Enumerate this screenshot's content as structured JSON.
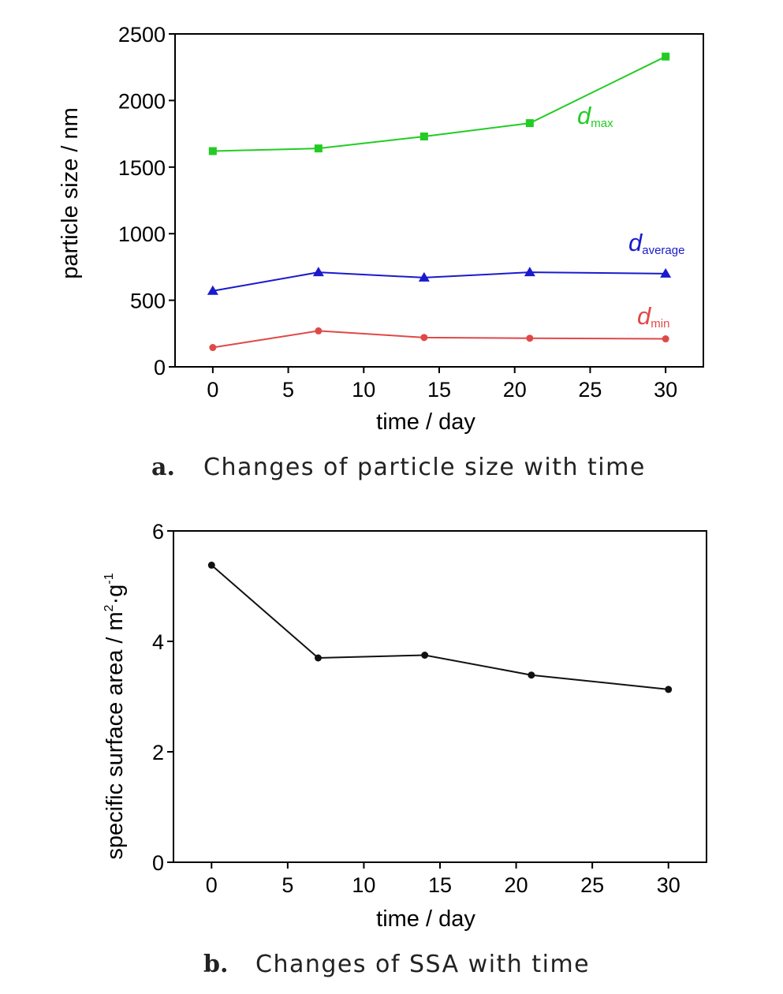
{
  "chart_data": [
    {
      "panel": "a.",
      "caption": "Changes of particle size with time",
      "type": "line",
      "xlabel": "time / day",
      "ylabel": "particle size / nm",
      "xlim": [
        -2.5,
        32.5
      ],
      "ylim": [
        0,
        2500
      ],
      "xticks": [
        0,
        5,
        10,
        15,
        20,
        25,
        30
      ],
      "yticks": [
        0,
        500,
        1000,
        1500,
        2000,
        2500
      ],
      "grid": false,
      "series": [
        {
          "name": "max",
          "label_main": "d",
          "label_sub": "max",
          "color": "#22cc22",
          "marker": "square",
          "x": [
            0,
            7,
            14,
            21,
            30
          ],
          "values": [
            1620,
            1640,
            1730,
            1830,
            2330
          ]
        },
        {
          "name": "average",
          "label_main": "d",
          "label_sub": "average",
          "color": "#1a1acc",
          "marker": "triangle",
          "x": [
            0,
            7,
            14,
            21,
            30
          ],
          "values": [
            570,
            710,
            670,
            710,
            700
          ]
        },
        {
          "name": "min",
          "label_main": "d",
          "label_sub": "min",
          "color": "#e04848",
          "marker": "circle",
          "x": [
            0,
            7,
            14,
            21,
            30
          ],
          "values": [
            145,
            270,
            220,
            215,
            210
          ]
        }
      ]
    },
    {
      "panel": "b.",
      "caption": "Changes of SSA with time",
      "type": "line",
      "xlabel": "time / day",
      "ylabel_main": "specific surface area / m",
      "ylabel_sup1": "2",
      "ylabel_mid": "·g",
      "ylabel_sup2": "-1",
      "xlim": [
        -2.5,
        32.5
      ],
      "ylim": [
        0,
        6
      ],
      "xticks": [
        0,
        5,
        10,
        15,
        20,
        25,
        30
      ],
      "yticks": [
        0,
        2,
        4,
        6
      ],
      "grid": false,
      "series": [
        {
          "color": "#111111",
          "marker": "circle",
          "x": [
            0,
            7,
            14,
            21,
            30
          ],
          "values": [
            5.38,
            3.7,
            3.75,
            3.39,
            3.13
          ]
        }
      ]
    }
  ]
}
